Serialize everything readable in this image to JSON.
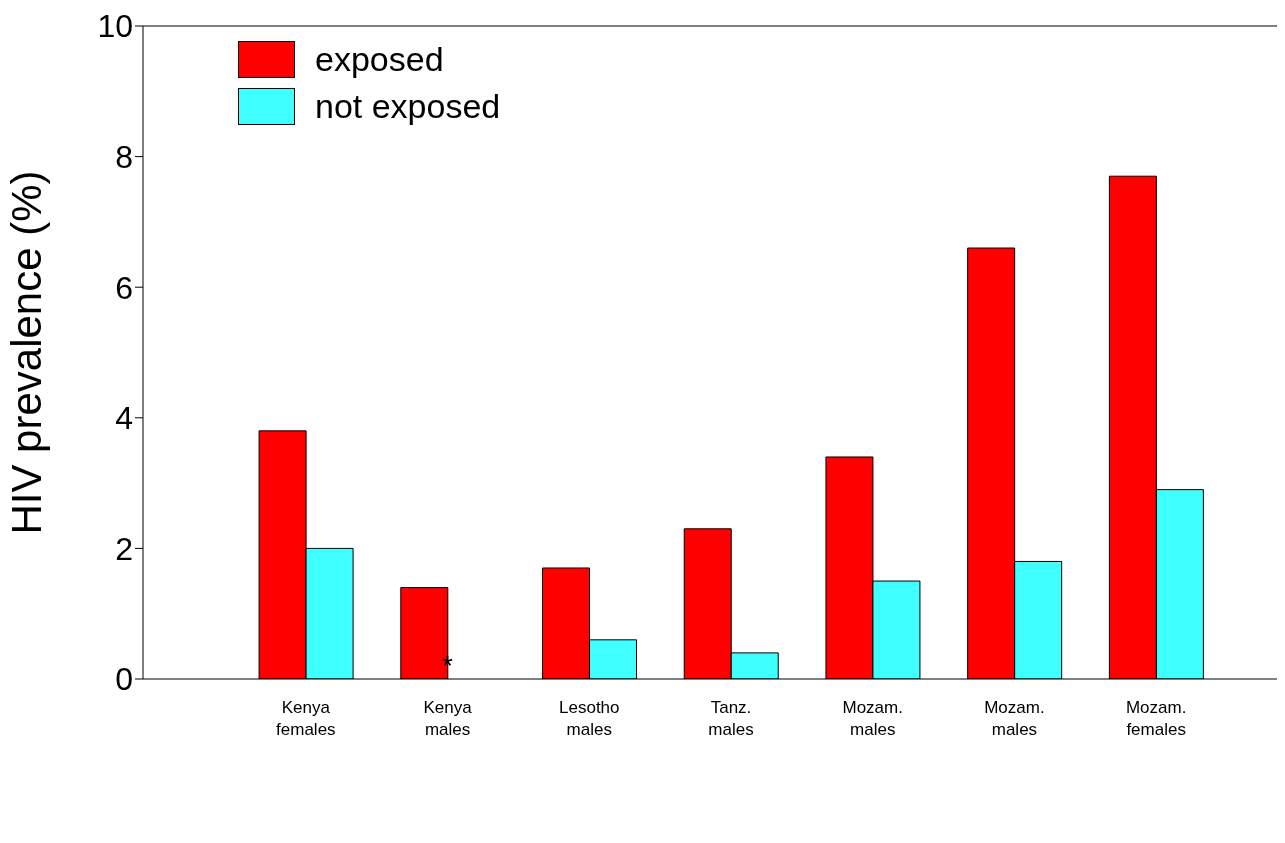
{
  "chart_data": {
    "type": "bar",
    "ylabel": "HIV prevalence (%)",
    "categories": [
      "Kenya females",
      "Kenya males",
      "Lesotho males",
      "Tanz. males",
      "Mozam. males",
      "Mozam. males",
      "Mozam. females"
    ],
    "series": [
      {
        "name": "exposed",
        "color": "#ff0000",
        "values": [
          3.8,
          1.4,
          1.7,
          2.3,
          3.4,
          6.6,
          7.7
        ]
      },
      {
        "name": "not exposed",
        "color": "#40ffff",
        "values": [
          2.0,
          null,
          0.6,
          0.4,
          1.5,
          1.8,
          2.9
        ]
      }
    ],
    "ylim": [
      0,
      10
    ],
    "yticks": [
      0,
      2,
      4,
      6,
      8,
      10
    ],
    "legend": "top left",
    "annotations": [
      {
        "text": "*",
        "x": "Kenya males",
        "y": 0
      }
    ]
  }
}
